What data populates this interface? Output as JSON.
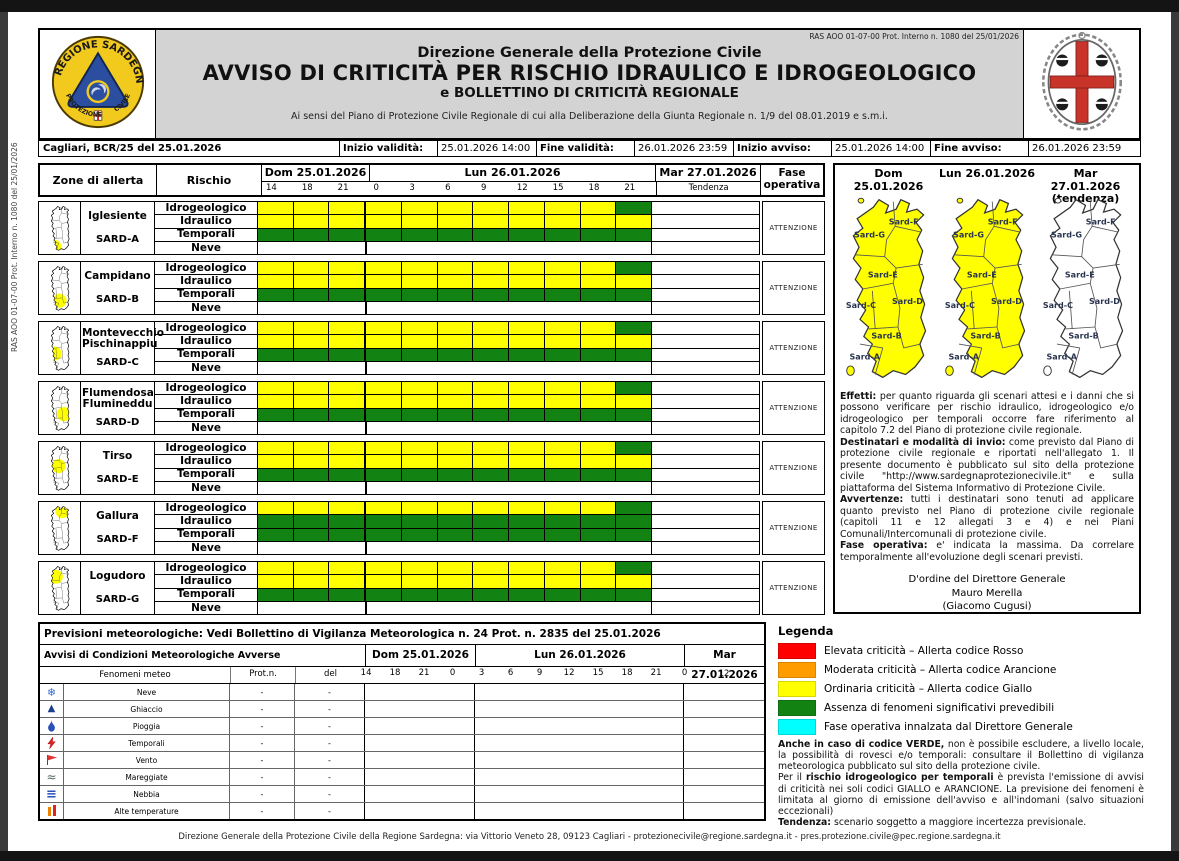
{
  "side_note": "RAS AOO 01-07-00 Prot. Interno n. 1080 del 25/01/2026",
  "header": {
    "protocol_line": "RAS AOO 01-07-00 Prot. Interno n. 1080 del 25/01/2026",
    "org": "Direzione Generale della Protezione Civile",
    "title": "AVVISO DI CRITICITÀ PER RISCHIO IDRAULICO E IDROGEOLOGICO",
    "subtitle": "e BOLLETTINO DI CRITICITÀ REGIONALE",
    "law_note": "Ai sensi del Piano di Protezione Civile Regionale di cui alla Deliberazione della Giunta Regionale n. 1/9 del 08.01.2019 e s.m.i.",
    "left_logo_name": "regione-sardegna-protezione-civile-logo",
    "right_logo_name": "regione-sardegna-stemma-logo"
  },
  "info_bar": {
    "reference": "Cagliari, BCR/25 del 25.01.2026",
    "fields": [
      {
        "label": "Inizio validità:",
        "value": "25.01.2026 14:00"
      },
      {
        "label": "Fine validità:",
        "value": "26.01.2026 23:59"
      },
      {
        "label": "Inizio avviso:",
        "value": "25.01.2026 14:00"
      },
      {
        "label": "Fine avviso:",
        "value": "26.01.2026 23:59"
      }
    ]
  },
  "zone_table": {
    "col_zone": "Zone di allerta",
    "col_risk": "Rischio",
    "day1": "Dom 25.01.2026",
    "day2": "Lun 26.01.2026",
    "day3": "Mar 27.01.2026",
    "tendenza_label": "Tendenza",
    "col_phase": "Fase operativa",
    "ticks": [
      "14",
      "18",
      "21",
      "0",
      "3",
      "6",
      "9",
      "12",
      "15",
      "18",
      "21"
    ],
    "zones": [
      {
        "name": "Iglesiente",
        "code": "SARD-A",
        "phase": "ATTENZIONE",
        "map_spot": [
          26,
          178
        ],
        "risks": [
          {
            "label": "Idrogeologico",
            "cells": [
              "Y",
              "Y",
              "Y",
              "Y",
              "Y",
              "Y",
              "Y",
              "Y",
              "Y",
              "Y",
              "G"
            ]
          },
          {
            "label": "Idraulico",
            "cells": [
              "Y",
              "Y",
              "Y",
              "Y",
              "Y",
              "Y",
              "Y",
              "Y",
              "Y",
              "Y",
              "Y"
            ]
          },
          {
            "label": "Temporali",
            "cells": [
              "G",
              "G",
              "G",
              "G",
              "G",
              "G",
              "G",
              "G",
              "G",
              "G",
              "G"
            ]
          },
          {
            "label": "Neve",
            "cells": []
          }
        ]
      },
      {
        "name": "Campidano",
        "code": "SARD-B",
        "phase": "ATTENZIONE",
        "map_spot": [
          48,
          152
        ],
        "risks": [
          {
            "label": "Idrogeologico",
            "cells": [
              "Y",
              "Y",
              "Y",
              "Y",
              "Y",
              "Y",
              "Y",
              "Y",
              "Y",
              "Y",
              "G"
            ]
          },
          {
            "label": "Idraulico",
            "cells": [
              "Y",
              "Y",
              "Y",
              "Y",
              "Y",
              "Y",
              "Y",
              "Y",
              "Y",
              "Y",
              "Y"
            ]
          },
          {
            "label": "Temporali",
            "cells": [
              "G",
              "G",
              "G",
              "G",
              "G",
              "G",
              "G",
              "G",
              "G",
              "G",
              "G"
            ]
          },
          {
            "label": "Neve",
            "cells": []
          }
        ]
      },
      {
        "name": "Montevecchio Pischinappiu",
        "code": "SARD-C",
        "phase": "ATTENZIONE",
        "map_spot": [
          27,
          122
        ],
        "risks": [
          {
            "label": "Idrogeologico",
            "cells": [
              "Y",
              "Y",
              "Y",
              "Y",
              "Y",
              "Y",
              "Y",
              "Y",
              "Y",
              "Y",
              "G"
            ]
          },
          {
            "label": "Idraulico",
            "cells": [
              "Y",
              "Y",
              "Y",
              "Y",
              "Y",
              "Y",
              "Y",
              "Y",
              "Y",
              "Y",
              "Y"
            ]
          },
          {
            "label": "Temporali",
            "cells": [
              "G",
              "G",
              "G",
              "G",
              "G",
              "G",
              "G",
              "G",
              "G",
              "G",
              "G"
            ]
          },
          {
            "label": "Neve",
            "cells": []
          }
        ]
      },
      {
        "name": "Flumendosa Flumineddu",
        "code": "SARD-D",
        "phase": "ATTENZIONE",
        "map_spot": [
          66,
          124
        ],
        "risks": [
          {
            "label": "Idrogeologico",
            "cells": [
              "Y",
              "Y",
              "Y",
              "Y",
              "Y",
              "Y",
              "Y",
              "Y",
              "Y",
              "Y",
              "G"
            ]
          },
          {
            "label": "Idraulico",
            "cells": [
              "Y",
              "Y",
              "Y",
              "Y",
              "Y",
              "Y",
              "Y",
              "Y",
              "Y",
              "Y",
              "Y"
            ]
          },
          {
            "label": "Temporali",
            "cells": [
              "G",
              "G",
              "G",
              "G",
              "G",
              "G",
              "G",
              "G",
              "G",
              "G",
              "G"
            ]
          },
          {
            "label": "Neve",
            "cells": []
          }
        ]
      },
      {
        "name": "Tirso",
        "code": "SARD-E",
        "phase": "ATTENZIONE",
        "map_spot": [
          44,
          90
        ],
        "risks": [
          {
            "label": "Idrogeologico",
            "cells": [
              "Y",
              "Y",
              "Y",
              "Y",
              "Y",
              "Y",
              "Y",
              "Y",
              "Y",
              "Y",
              "G"
            ]
          },
          {
            "label": "Idraulico",
            "cells": [
              "Y",
              "Y",
              "Y",
              "Y",
              "Y",
              "Y",
              "Y",
              "Y",
              "Y",
              "Y",
              "Y"
            ]
          },
          {
            "label": "Temporali",
            "cells": [
              "G",
              "G",
              "G",
              "G",
              "G",
              "G",
              "G",
              "G",
              "G",
              "G",
              "G"
            ]
          },
          {
            "label": "Neve",
            "cells": []
          }
        ]
      },
      {
        "name": "Gallura",
        "code": "SARD-F",
        "phase": "ATTENZIONE",
        "map_spot": [
          60,
          26
        ],
        "risks": [
          {
            "label": "Idrogeologico",
            "cells": [
              "Y",
              "Y",
              "Y",
              "Y",
              "Y",
              "Y",
              "Y",
              "Y",
              "Y",
              "Y",
              "G"
            ]
          },
          {
            "label": "Idraulico",
            "cells": [
              "G",
              "G",
              "G",
              "G",
              "G",
              "G",
              "G",
              "G",
              "G",
              "G",
              "G"
            ]
          },
          {
            "label": "Temporali",
            "cells": [
              "G",
              "G",
              "G",
              "G",
              "G",
              "G",
              "G",
              "G",
              "G",
              "G",
              "G"
            ]
          },
          {
            "label": "Neve",
            "cells": []
          }
        ]
      },
      {
        "name": "Logudoro",
        "code": "SARD-G",
        "phase": "ATTENZIONE",
        "map_spot": [
          32,
          50
        ],
        "risks": [
          {
            "label": "Idrogeologico",
            "cells": [
              "Y",
              "Y",
              "Y",
              "Y",
              "Y",
              "Y",
              "Y",
              "Y",
              "Y",
              "Y",
              "G"
            ]
          },
          {
            "label": "Idraulico",
            "cells": [
              "Y",
              "Y",
              "Y",
              "Y",
              "Y",
              "Y",
              "Y",
              "Y",
              "Y",
              "Y",
              "Y"
            ]
          },
          {
            "label": "Temporali",
            "cells": [
              "G",
              "G",
              "G",
              "G",
              "G",
              "G",
              "G",
              "G",
              "G",
              "G",
              "G"
            ]
          },
          {
            "label": "Neve",
            "cells": []
          }
        ]
      }
    ]
  },
  "maps_panel": {
    "maps": [
      {
        "line1": "Dom 25.01.2026",
        "line2": "",
        "fill": "#ffff00"
      },
      {
        "line1": "Lun 26.01.2026",
        "line2": "",
        "fill": "#ffff00"
      },
      {
        "line1": "Mar 27.01.2026",
        "line2": "(tendenza)",
        "fill": "#ffffff"
      }
    ],
    "zone_labels": [
      "Sard-F",
      "Sard-G",
      "Sard-E",
      "Sard-C",
      "Sard-D",
      "Sard-B",
      "Sard-A"
    ],
    "paragraphs": [
      [
        {
          "b": true,
          "t": "Effetti:"
        },
        {
          "b": false,
          "t": " per quanto riguarda gli scenari attesi e i danni che si possono verificare per rischio idraulico, idrogeologico e/o idrogeologico per temporali occorre fare riferimento al capitolo 7.2 del Piano di protezione civile regionale."
        }
      ],
      [
        {
          "b": true,
          "t": "Destinatari e modalità di invio:"
        },
        {
          "b": false,
          "t": " come previsto dal Piano di protezione civile regionale e riportati nell'allegato 1. Il presente documento è pubblicato sul sito della protezione civile \"http://www.sardegnaprotezionecivile.it\" e sulla piattaforma del Sistema Informativo di Protezione Civile."
        }
      ],
      [
        {
          "b": true,
          "t": "Avvertenze:"
        },
        {
          "b": false,
          "t": " tutti i destinatari sono tenuti ad applicare quanto previsto nel Piano di protezione civile regionale (capitoli 11 e 12 allegati 3 e 4) e nei Piani Comunali/Intercomunali di protezione civile."
        }
      ],
      [
        {
          "b": true,
          "t": "Fase operativa:"
        },
        {
          "b": false,
          "t": " e' indicata la massima. Da correlare temporalmente all'evoluzione degli scenari previsti."
        }
      ]
    ],
    "signature": [
      "D'ordine del Direttore Generale",
      "Mauro Merella",
      "(Giacomo Cugusi)"
    ]
  },
  "weather_table": {
    "title": "Previsioni meteorologiche: Vedi Bollettino di Vigilanza Meteorologica n. 24 Prot. n. 2835 del 25.01.2026",
    "header_label": "Avvisi di Condizioni Meteorologiche Avverse",
    "day1": "Dom 25.01.2026",
    "day2": "Lun 26.01.2026",
    "day3": "Mar 27.01.2026",
    "col_phenomena": "Fenomeni meteo",
    "col_prot": "Prot.n.",
    "col_del": "del",
    "ticks": [
      "14",
      "18",
      "21",
      "0",
      "3",
      "6",
      "9",
      "12",
      "15",
      "18",
      "21",
      "0"
    ],
    "mar_tick": "12",
    "rows": [
      {
        "icon": "snowflake-icon",
        "name": "Neve",
        "prot": "-",
        "del": "-"
      },
      {
        "icon": "ice-icon",
        "name": "Ghiaccio",
        "prot": "-",
        "del": "-"
      },
      {
        "icon": "rain-icon",
        "name": "Pioggia",
        "prot": "-",
        "del": "-"
      },
      {
        "icon": "storm-icon",
        "name": "Temporali",
        "prot": "-",
        "del": "-"
      },
      {
        "icon": "wind-icon",
        "name": "Vento",
        "prot": "-",
        "del": "-"
      },
      {
        "icon": "sea-icon",
        "name": "Mareggiate",
        "prot": "-",
        "del": "-"
      },
      {
        "icon": "fog-icon",
        "name": "Nebbia",
        "prot": "-",
        "del": "-"
      },
      {
        "icon": "heat-icon",
        "name": "Alte temperature",
        "prot": "-",
        "del": "-"
      }
    ]
  },
  "legend": {
    "title": "Legenda",
    "items": [
      {
        "color": "#fe0000",
        "label": "Elevata criticità – Allerta codice Rosso"
      },
      {
        "color": "#ff9d00",
        "label": "Moderata criticità – Allerta codice Arancione"
      },
      {
        "color": "#ffff00",
        "label": "Ordinaria criticità – Allerta codice Giallo"
      },
      {
        "color": "#128212",
        "label": "Assenza di fenomeni significativi prevedibili"
      },
      {
        "color": "#00ffff",
        "label": "Fase operativa innalzata dal Direttore Generale"
      }
    ],
    "notes": [
      [
        {
          "b": true,
          "t": "Anche in caso di codice VERDE,"
        },
        {
          "b": false,
          "t": " non è possibile escludere, a livello locale, la possibilità di rovesci e/o temporali: consultare il Bollettino di vigilanza meteorologica pubblicato sul sito della protezione civile."
        }
      ],
      [
        {
          "b": false,
          "t": "Per il "
        },
        {
          "b": true,
          "t": "rischio idrogeologico per temporali"
        },
        {
          "b": false,
          "t": " è prevista l'emissione di avvisi di criticità nei soli codici GIALLO e ARANCIONE. La previsione dei fenomeni è limitata al giorno di emissione dell'avviso e all'indomani (salvo situazioni eccezionali)"
        }
      ],
      [
        {
          "b": true,
          "t": "Tendenza:"
        },
        {
          "b": false,
          "t": " scenario soggetto a maggiore incertezza previsionale."
        }
      ]
    ]
  },
  "footer": {
    "text": "Direzione Generale della Protezione Civile della Regione Sardegna: via Vittorio Veneto 28, 09123 Cagliari - protezionecivile@regione.sardegna.it - pres.protezione.civile@pec.regione.sardegna.it"
  },
  "colors": {
    "yellow": "#ffff00",
    "green": "#128212",
    "red": "#fe0000",
    "orange": "#ff9d00",
    "cyan": "#00ffff"
  }
}
